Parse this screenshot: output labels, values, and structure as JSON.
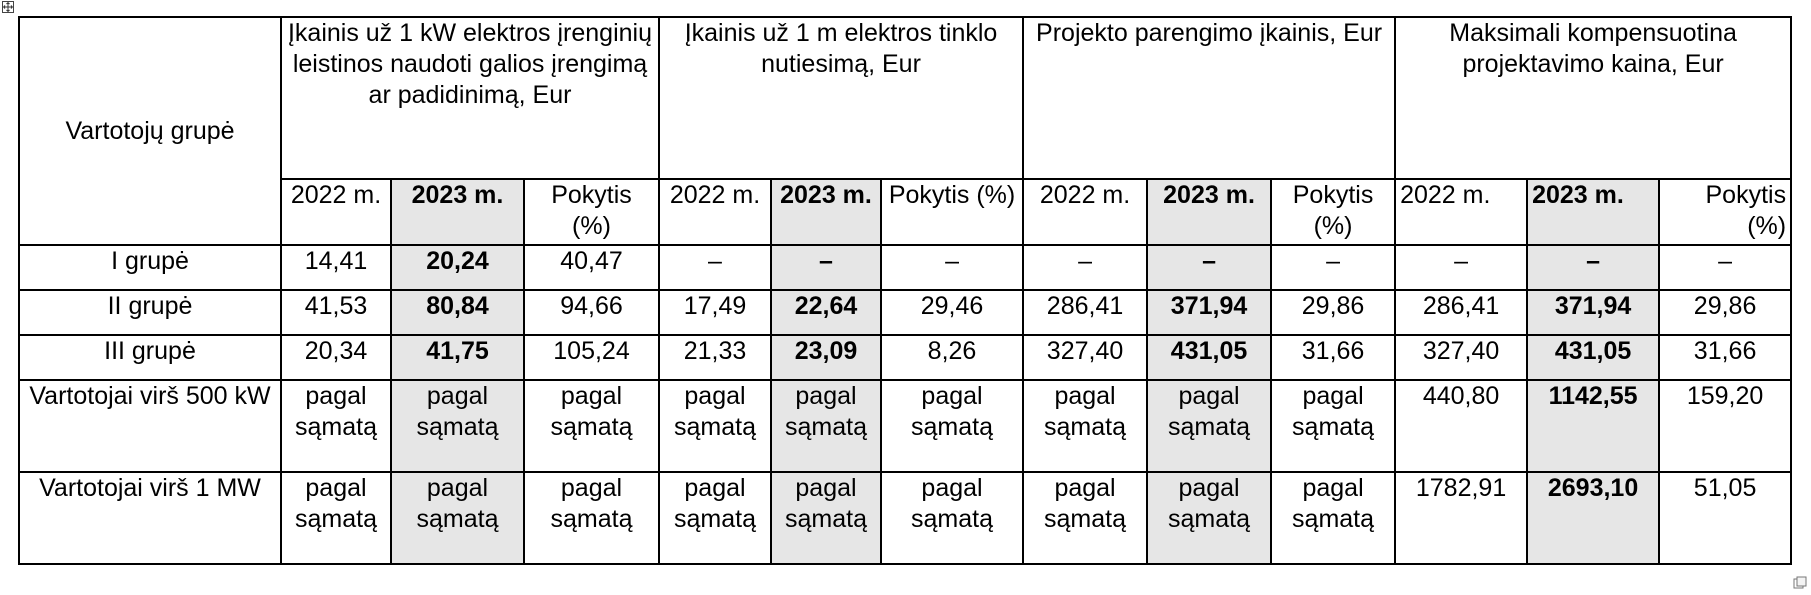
{
  "header": {
    "group_label": "Vartotojų  grupė",
    "col_groups": [
      "Įkainis už 1 kW elektros įrenginių leistinos naudoti galios įrengimą ar padidinimą, Eur",
      "Įkainis už 1 m elektros tinklo nutiesimą, Eur",
      "Projekto parengimo įkainis, Eur",
      "Maksimali kompensuotina projektavimo kaina, Eur"
    ],
    "sub": [
      "2022 m.",
      "2023 m.",
      "Pokytis (%)",
      "2022 m.",
      "2023 m.",
      "Pokytis (%)",
      "2022 m.",
      "2023 m.",
      "Pokytis (%)",
      "2022 m.",
      "2023 m.",
      "Pokytis (%)"
    ]
  },
  "rows": [
    {
      "group": "I grupė",
      "cells": [
        "14,41",
        "20,24",
        "40,47",
        "–",
        "–",
        "–",
        "–",
        "–",
        "–",
        "–",
        "–",
        "–"
      ]
    },
    {
      "group": "II grupė",
      "cells": [
        "41,53",
        "80,84",
        "94,66",
        "17,49",
        "22,64",
        "29,46",
        "286,41",
        "371,94",
        "29,86",
        "286,41",
        "371,94",
        "29,86"
      ]
    },
    {
      "group": "III grupė",
      "cells": [
        "20,34",
        "41,75",
        "105,24",
        "21,33",
        "23,09",
        "8,26",
        "327,40",
        "431,05",
        "31,66",
        "327,40",
        "431,05",
        "31,66"
      ]
    },
    {
      "group": "Vartotojai virš  500 kW",
      "cells": [
        "pagal sąmatą",
        "pagal sąmatą",
        "pagal sąmatą",
        "pagal sąmatą",
        "pagal sąmatą",
        "pagal sąmatą",
        "pagal sąmatą",
        "pagal sąmatą",
        "pagal sąmatą",
        "440,80",
        "1142,55",
        "159,20"
      ]
    },
    {
      "group": "Vartotojai virš 1 MW",
      "cells": [
        "pagal sąmatą",
        "pagal sąmatą",
        "pagal sąmatą",
        "pagal sąmatą",
        "pagal sąmatą",
        "pagal sąmatą",
        "pagal sąmatą",
        "pagal sąmatą",
        "pagal sąmatą",
        "1782,91",
        "2693,10",
        "51,05"
      ]
    }
  ],
  "icons": {
    "move": "move-handle-icon",
    "resize": "resize-handle-icon"
  },
  "colors": {
    "highlight": "#e6e6e6",
    "border": "#000000"
  }
}
